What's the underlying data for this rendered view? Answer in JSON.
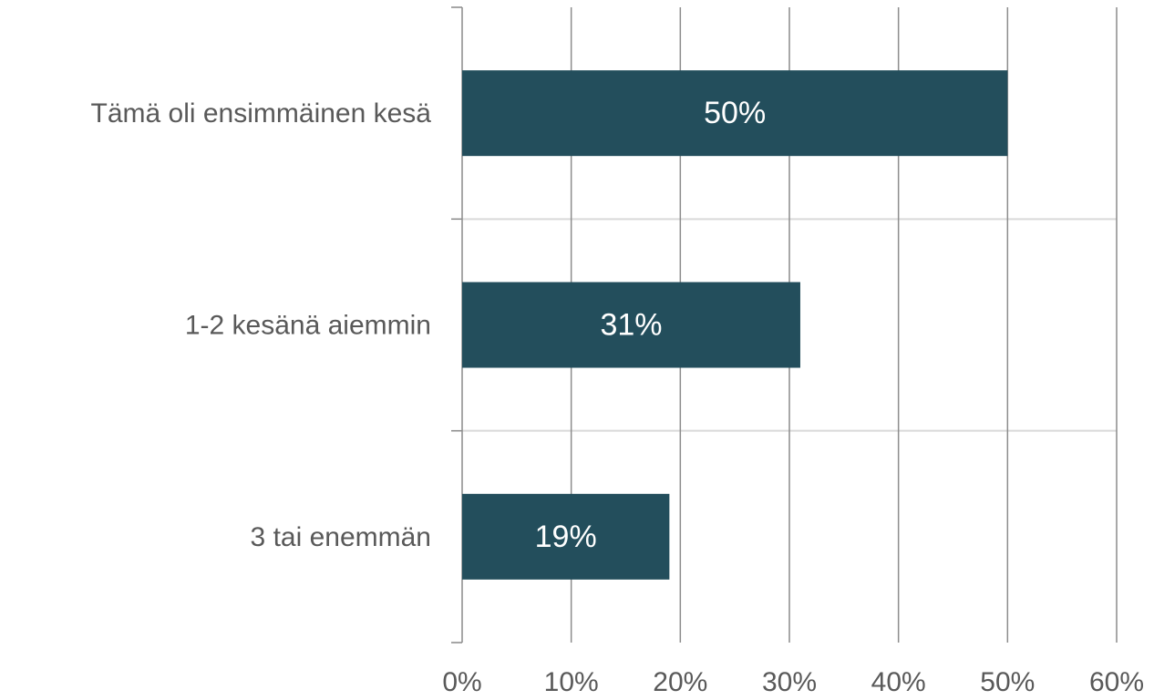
{
  "chart_data": {
    "type": "hbar",
    "categories": [
      "Tämä oli ensimmäinen kesä",
      "1-2 kesänä aiemmin",
      "3 tai enemmän"
    ],
    "values": [
      50,
      31,
      19
    ],
    "value_labels": [
      "50%",
      "31%",
      "19%"
    ],
    "color": "#234e5c",
    "xlim": [
      0,
      60
    ],
    "xticks": [
      {
        "value": 0,
        "label": "0%"
      },
      {
        "value": 10,
        "label": "10%"
      },
      {
        "value": 20,
        "label": "20%"
      },
      {
        "value": 30,
        "label": "30%"
      },
      {
        "value": 40,
        "label": "40%"
      },
      {
        "value": 50,
        "label": "50%"
      },
      {
        "value": 60,
        "label": "60%"
      }
    ],
    "grid": true
  }
}
